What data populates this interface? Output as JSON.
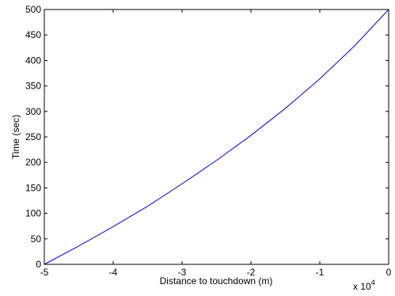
{
  "chart_data": {
    "type": "line",
    "title": "",
    "xlabel": "Distance to touchdown (m)",
    "ylabel": "Time (sec)",
    "x_multiplier_label": "x 10",
    "x_multiplier_exponent": "4",
    "xlim": [
      -5,
      0
    ],
    "ylim": [
      0,
      500
    ],
    "xticks": [
      -5,
      -4,
      -3,
      -2,
      -1,
      0
    ],
    "xtick_labels": [
      "-5",
      "-4",
      "-3",
      "-2",
      "-1",
      "0"
    ],
    "yticks": [
      0,
      50,
      100,
      150,
      200,
      250,
      300,
      350,
      400,
      450,
      500
    ],
    "ytick_labels": [
      "0",
      "50",
      "100",
      "150",
      "200",
      "250",
      "300",
      "350",
      "400",
      "450",
      "500"
    ],
    "grid": false,
    "series": [
      {
        "color": "#0000ff",
        "x": [
          -5,
          -4.5,
          -4,
          -3.5,
          -3,
          -2.5,
          -2,
          -1.5,
          -1,
          -0.5,
          0
        ],
        "y": [
          0,
          36,
          74,
          114,
          158,
          204,
          253,
          306,
          364,
          428,
          500
        ]
      }
    ]
  }
}
